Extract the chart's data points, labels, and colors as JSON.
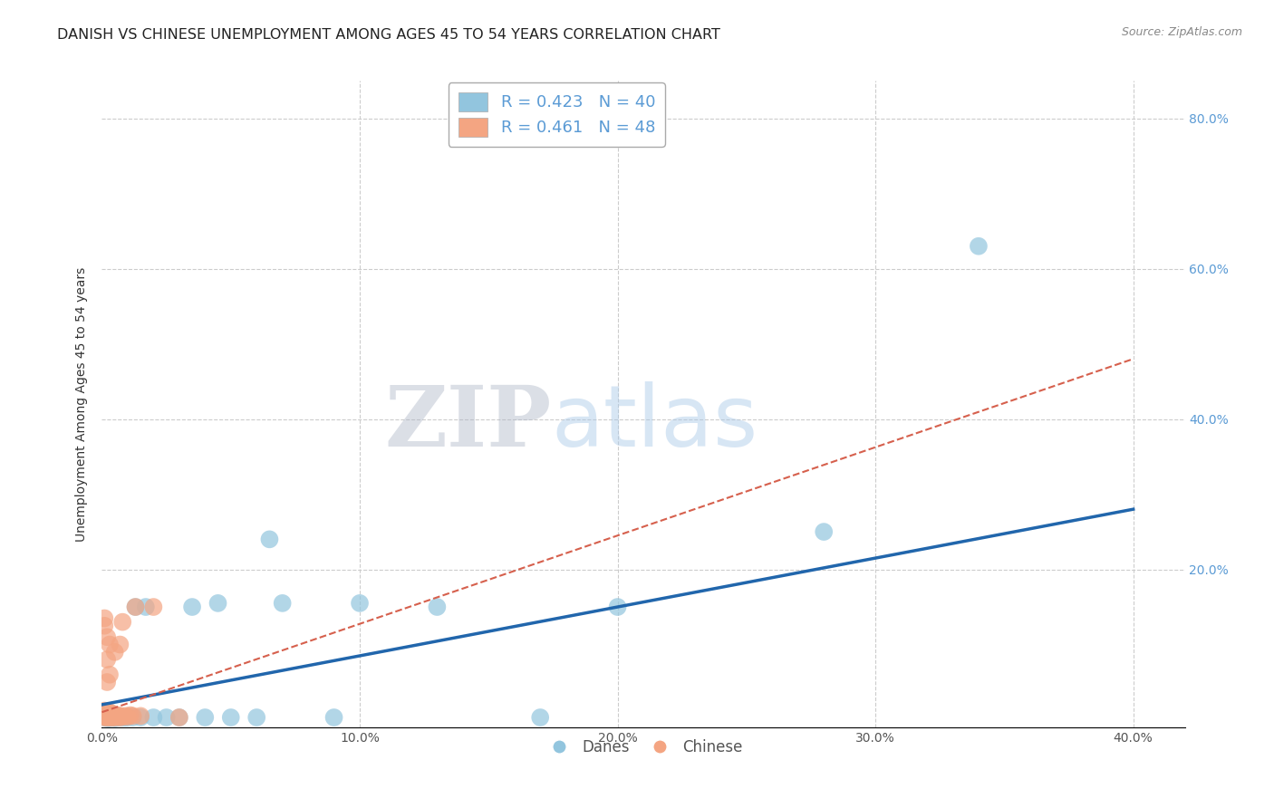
{
  "title": "DANISH VS CHINESE UNEMPLOYMENT AMONG AGES 45 TO 54 YEARS CORRELATION CHART",
  "source": "Source: ZipAtlas.com",
  "ylabel": "Unemployment Among Ages 45 to 54 years",
  "xlim": [
    0.0,
    0.42
  ],
  "ylim": [
    -0.01,
    0.85
  ],
  "danes_color": "#92c5de",
  "chinese_color": "#f4a582",
  "danes_line_color": "#2166ac",
  "chinese_line_color": "#d6604d",
  "danes_R": 0.423,
  "danes_N": 40,
  "chinese_R": 0.461,
  "chinese_N": 48,
  "background_color": "#ffffff",
  "watermark_zip": "ZIP",
  "watermark_atlas": "atlas",
  "danes_x": [
    0.001,
    0.001,
    0.002,
    0.002,
    0.002,
    0.003,
    0.003,
    0.003,
    0.003,
    0.003,
    0.004,
    0.004,
    0.005,
    0.005,
    0.006,
    0.007,
    0.008,
    0.009,
    0.01,
    0.012,
    0.013,
    0.015,
    0.017,
    0.02,
    0.025,
    0.03,
    0.035,
    0.04,
    0.045,
    0.05,
    0.06,
    0.065,
    0.07,
    0.09,
    0.1,
    0.13,
    0.17,
    0.2,
    0.28,
    0.34
  ],
  "danes_y": [
    0.003,
    0.005,
    0.002,
    0.004,
    0.006,
    0.002,
    0.003,
    0.004,
    0.005,
    0.006,
    0.003,
    0.005,
    0.002,
    0.004,
    0.003,
    0.003,
    0.003,
    0.003,
    0.003,
    0.003,
    0.15,
    0.003,
    0.15,
    0.003,
    0.003,
    0.003,
    0.15,
    0.003,
    0.155,
    0.003,
    0.003,
    0.24,
    0.155,
    0.003,
    0.155,
    0.15,
    0.003,
    0.15,
    0.25,
    0.63
  ],
  "chinese_x": [
    0.001,
    0.001,
    0.001,
    0.001,
    0.001,
    0.001,
    0.001,
    0.001,
    0.001,
    0.001,
    0.002,
    0.002,
    0.002,
    0.002,
    0.002,
    0.002,
    0.002,
    0.002,
    0.002,
    0.003,
    0.003,
    0.003,
    0.003,
    0.003,
    0.003,
    0.003,
    0.003,
    0.004,
    0.004,
    0.004,
    0.005,
    0.005,
    0.005,
    0.006,
    0.006,
    0.007,
    0.007,
    0.007,
    0.008,
    0.008,
    0.009,
    0.01,
    0.011,
    0.012,
    0.013,
    0.015,
    0.02,
    0.03
  ],
  "chinese_y": [
    0.003,
    0.004,
    0.005,
    0.006,
    0.007,
    0.008,
    0.01,
    0.012,
    0.125,
    0.135,
    0.003,
    0.004,
    0.005,
    0.006,
    0.008,
    0.01,
    0.05,
    0.08,
    0.11,
    0.003,
    0.004,
    0.005,
    0.006,
    0.008,
    0.01,
    0.06,
    0.1,
    0.003,
    0.005,
    0.008,
    0.003,
    0.005,
    0.09,
    0.004,
    0.006,
    0.003,
    0.005,
    0.1,
    0.004,
    0.13,
    0.005,
    0.004,
    0.006,
    0.005,
    0.15,
    0.005,
    0.15,
    0.003
  ]
}
